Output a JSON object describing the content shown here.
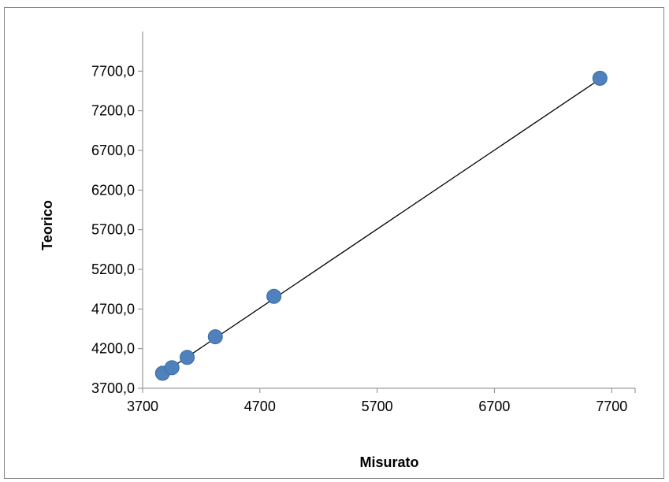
{
  "chart_data": {
    "type": "scatter",
    "title": "",
    "xlabel": "Misurato",
    "ylabel": "Teorico",
    "xlim": [
      3700,
      7900
    ],
    "ylim": [
      3700,
      8200
    ],
    "x_ticks": [
      3700,
      4700,
      5700,
      6700,
      7700
    ],
    "x_tick_labels": [
      "3700",
      "4700",
      "5700",
      "6700",
      "7700"
    ],
    "y_ticks": [
      3700,
      4200,
      4700,
      5200,
      5700,
      6200,
      6700,
      7200,
      7700
    ],
    "y_tick_labels": [
      "3700,0",
      "4200,0",
      "4700,0",
      "5200,0",
      "5700,0",
      "6200,0",
      "6700,0",
      "7200,0",
      "7700,0"
    ],
    "grid": false,
    "legend": "none",
    "series": [
      {
        "points": [
          {
            "x": 3870,
            "y": 3890
          },
          {
            "x": 3950,
            "y": 3960
          },
          {
            "x": 4080,
            "y": 4090
          },
          {
            "x": 4320,
            "y": 4350
          },
          {
            "x": 4820,
            "y": 4860
          },
          {
            "x": 7600,
            "y": 7610
          }
        ],
        "color": "#4F81BD",
        "marker_edge_color": "#3A6AA5"
      }
    ],
    "trendline": {
      "type": "linear",
      "x_start": 3870,
      "y_start": 3885,
      "x_end": 7600,
      "y_end": 7600,
      "color": "#000000"
    }
  }
}
